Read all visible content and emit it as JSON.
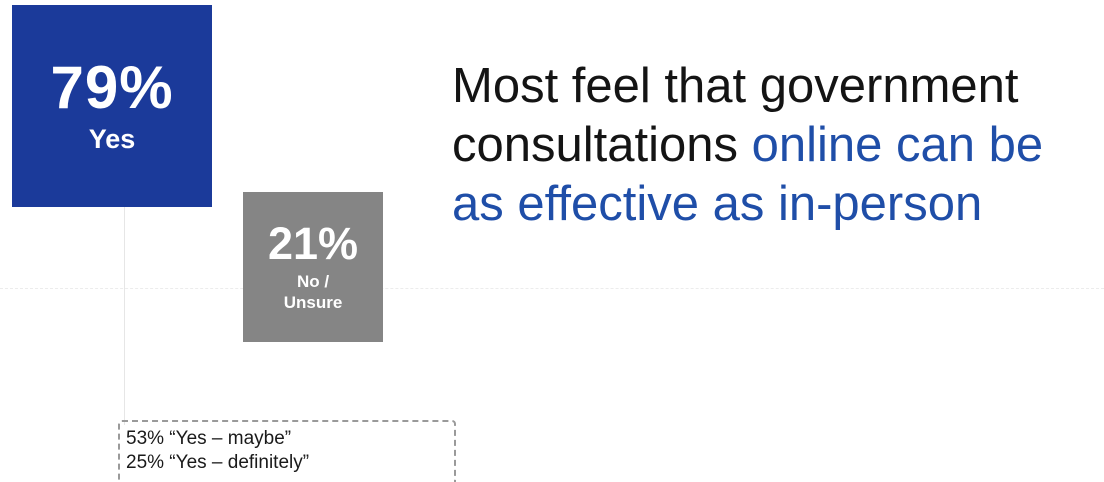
{
  "chart_data": {
    "type": "bar",
    "categories": [
      "Yes",
      "No / Unsure"
    ],
    "values": [
      79,
      21
    ],
    "colors": [
      "#1b3a9a",
      "#858585"
    ]
  },
  "cards": {
    "yes": {
      "pct": "79%",
      "label": "Yes"
    },
    "no": {
      "pct": "21%",
      "label_line1": "No /",
      "label_line2": "Unsure"
    }
  },
  "headline": {
    "part1": "Most feel that government consultations ",
    "part2": "online can be as effective as in-person",
    "accent_color": "#1f4ea8"
  },
  "breakdown": {
    "lines": [
      "53% “Yes – maybe”",
      "25% “Yes – definitely”"
    ]
  }
}
